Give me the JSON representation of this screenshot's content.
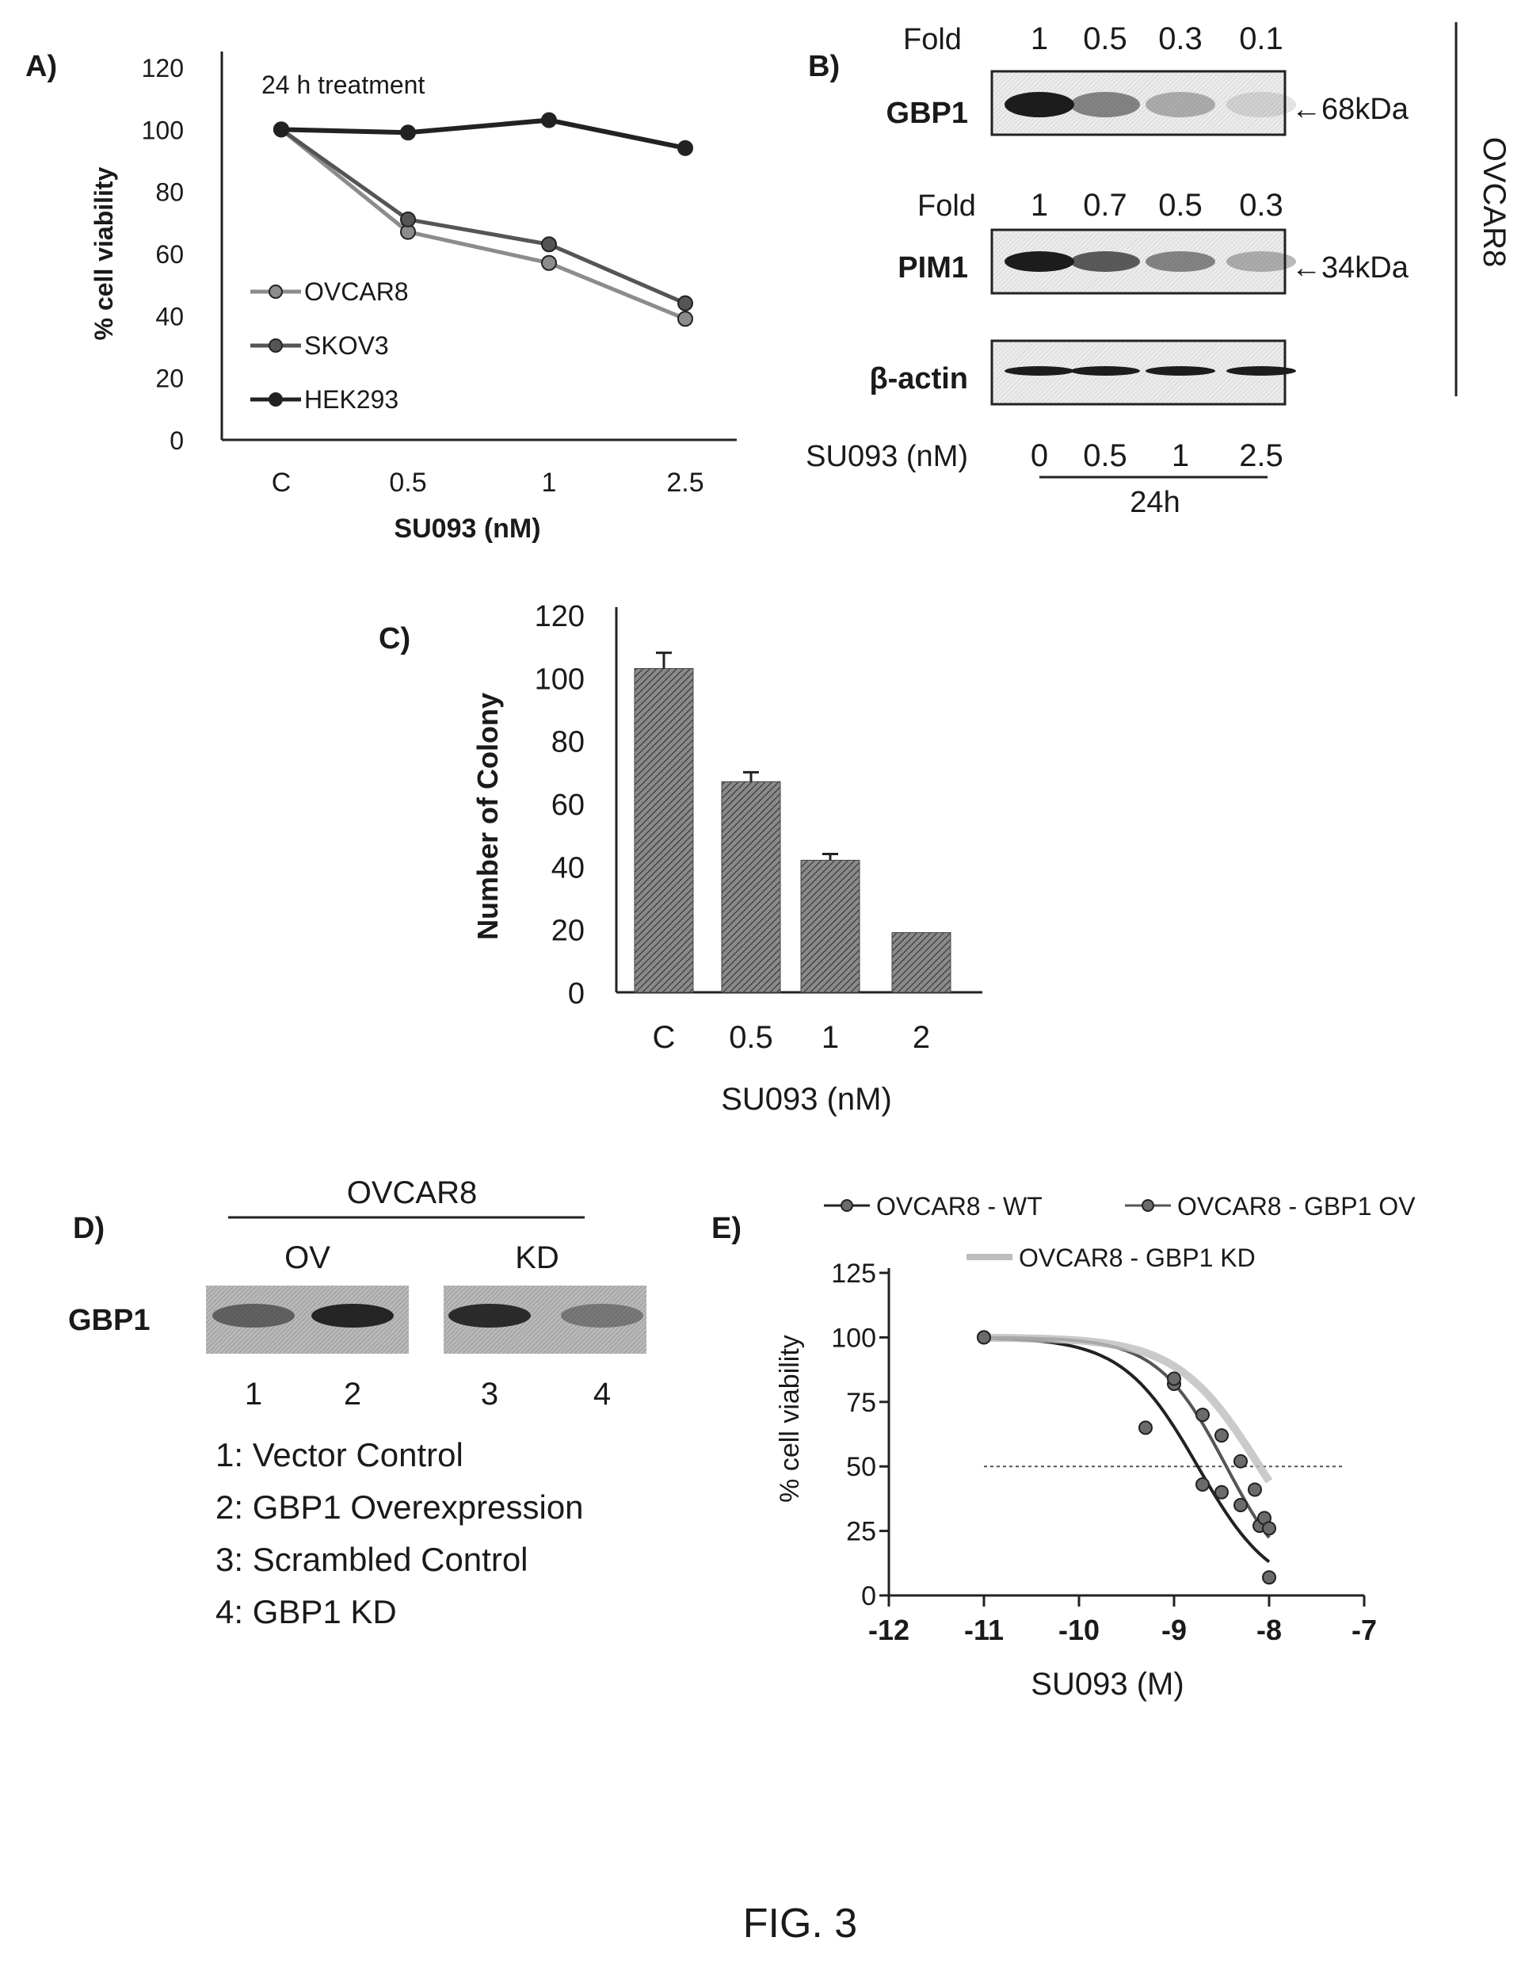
{
  "figure_label": "FIG. 3",
  "colors": {
    "ink": "#1a1a1a",
    "line_dark": "#222222",
    "line_mid": "#555555",
    "line_light": "#8c8c8c",
    "bar": "#5a5a5a",
    "blot_bg": "#e8e8e8",
    "kd_curve": "#bdbdbd"
  },
  "panel_b": {
    "label": "B)",
    "gbp1": {
      "fold_label": "Fold",
      "folds": [
        "1",
        "0.5",
        "0.3",
        "0.1"
      ],
      "band": "GBP1",
      "size": "←68kDa",
      "intensity": [
        1,
        0.5,
        0.3,
        0.1
      ]
    },
    "pim1": {
      "fold_label": "Fold",
      "folds": [
        "1",
        "0.7",
        "0.5",
        "0.3"
      ],
      "band": "PIM1",
      "size": "←34kDa",
      "intensity": [
        1,
        0.7,
        0.5,
        0.3
      ]
    },
    "actin": {
      "band": "β-actin",
      "intensity": [
        1,
        1,
        1,
        1
      ]
    },
    "dose_label": "SU093 (nM)",
    "doses": [
      "0",
      "0.5",
      "1",
      "2.5"
    ],
    "time": "24h",
    "cell_line": "OVCAR8"
  },
  "panel_d": {
    "label": "D)",
    "cell_line": "OVCAR8",
    "groups": [
      "OV",
      "KD"
    ],
    "band": "GBP1",
    "lanes": [
      "1",
      "2",
      "3",
      "4"
    ],
    "lane_intensity": [
      0.55,
      0.95,
      0.9,
      0.4
    ],
    "legend": [
      "1: Vector Control",
      "2: GBP1 Overexpression",
      "3: Scrambled Control",
      "4: GBP1 KD"
    ]
  },
  "chart_data": [
    {
      "panel": "A)",
      "type": "line",
      "annotation": "24 h treatment",
      "xlabel": "SU093 (nM)",
      "ylabel": "% cell viability",
      "categories": [
        "C",
        "0.5",
        "1",
        "2.5"
      ],
      "ylim": [
        0,
        120
      ],
      "yticks": [
        0,
        20,
        40,
        60,
        80,
        100,
        120
      ],
      "legend_position": "left",
      "series": [
        {
          "name": "OVCAR8",
          "values": [
            100,
            67,
            57,
            39
          ]
        },
        {
          "name": "SKOV3",
          "values": [
            100,
            71,
            63,
            44
          ]
        },
        {
          "name": "HEK293",
          "values": [
            100,
            99,
            103,
            94
          ]
        }
      ]
    },
    {
      "panel": "C)",
      "type": "bar",
      "xlabel": "SU093 (nM)",
      "ylabel": "Number of Colony",
      "categories": [
        "C",
        "0.5",
        "1",
        "2"
      ],
      "values": [
        103,
        67,
        42,
        19
      ],
      "errors": [
        5,
        3,
        2,
        0.5
      ],
      "ylim": [
        0,
        120
      ],
      "yticks": [
        0,
        20,
        40,
        60,
        80,
        100,
        120
      ]
    },
    {
      "panel": "E)",
      "type": "scatter",
      "xlabel": "SU093 (M)",
      "ylabel": "% cell viability",
      "xlim": [
        -12,
        -7
      ],
      "xticks": [
        -12,
        -11,
        -10,
        -9,
        -8,
        -7
      ],
      "ylim": [
        0,
        125
      ],
      "yticks": [
        0,
        25,
        50,
        75,
        100,
        125
      ],
      "reference_line_y": 50,
      "legend_position": "top",
      "series": [
        {
          "name": "OVCAR8 - WT",
          "ic50": -8.75,
          "hill": 1.1,
          "x": [
            -11,
            -9.3,
            -9.0,
            -8.7,
            -8.5,
            -8.3,
            -8.1,
            -8.0
          ],
          "y": [
            100,
            65,
            82,
            43,
            40,
            35,
            27,
            7
          ]
        },
        {
          "name": "OVCAR8 - GBP1 OV",
          "ic50": -8.45,
          "hill": 1.2,
          "x": [
            -11,
            -9.0,
            -8.7,
            -8.5,
            -8.3,
            -8.15,
            -8.05,
            -8.0
          ],
          "y": [
            100,
            84,
            70,
            62,
            52,
            41,
            30,
            26
          ]
        },
        {
          "name": "OVCAR8 - GBP1 KD",
          "ic50": -8.1,
          "hill": 1.0,
          "x": [
            -11,
            -9.0,
            -8.5,
            -8.0
          ],
          "y": [
            100,
            93,
            85,
            67
          ]
        }
      ]
    }
  ]
}
